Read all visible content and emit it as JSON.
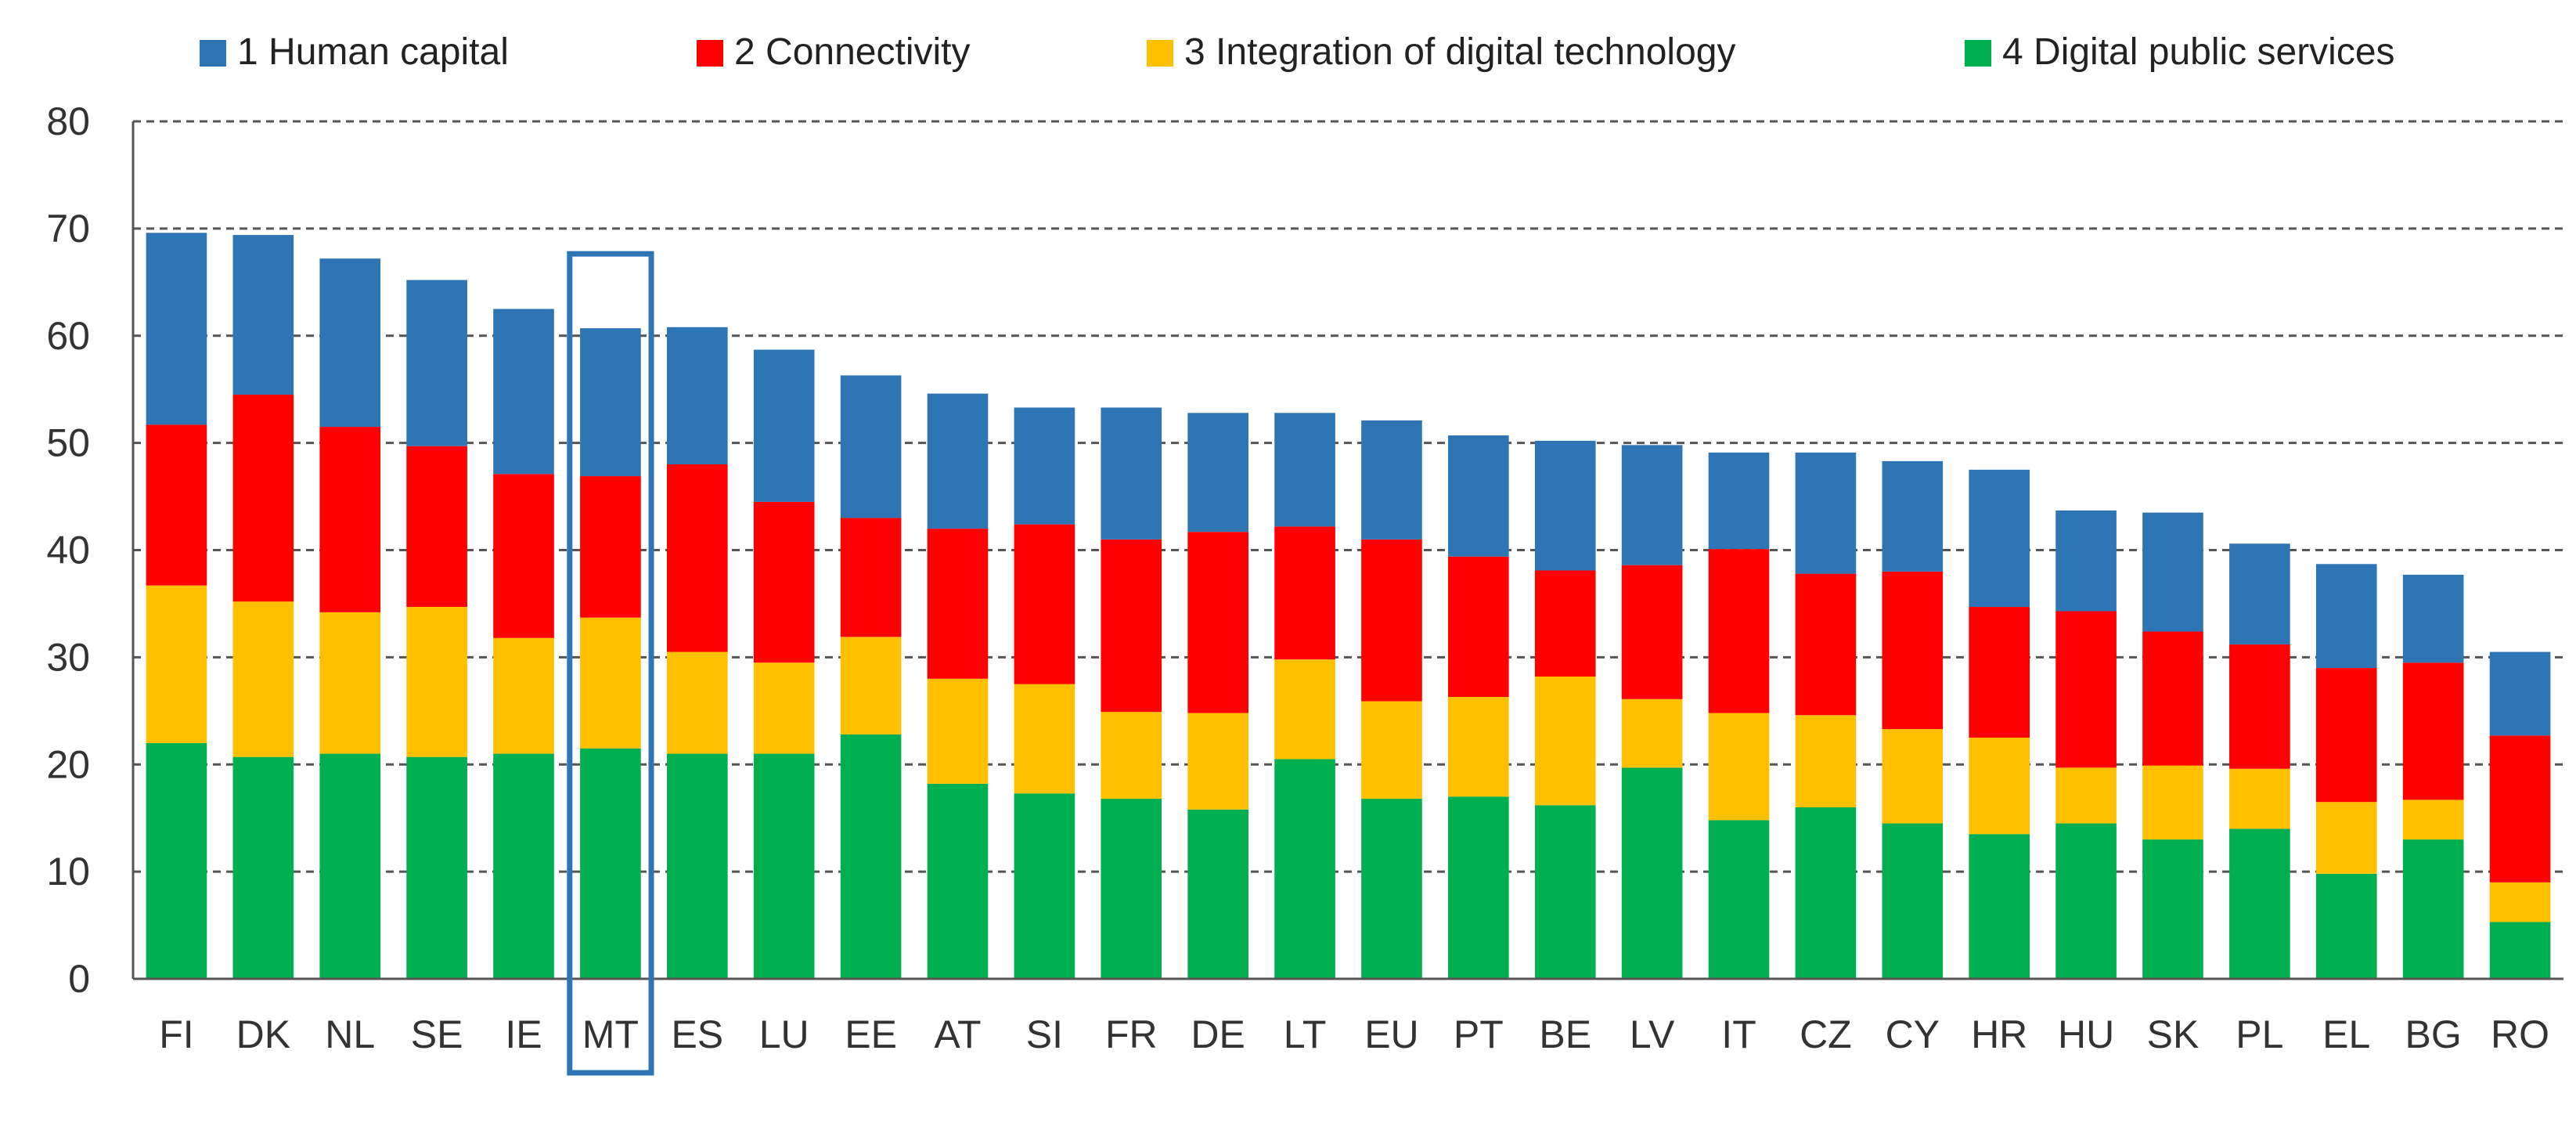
{
  "chart_data": {
    "type": "bar",
    "stacked": true,
    "title": "",
    "xlabel": "",
    "ylabel": "",
    "ylim": [
      0,
      80
    ],
    "yticks": [
      0,
      10,
      20,
      30,
      40,
      50,
      60,
      70,
      80
    ],
    "grid": true,
    "legend_position": "top",
    "highlighted_category": "MT",
    "highlight_color": "#2e75b6",
    "categories": [
      "FI",
      "DK",
      "NL",
      "SE",
      "IE",
      "MT",
      "ES",
      "LU",
      "EE",
      "AT",
      "SI",
      "FR",
      "DE",
      "LT",
      "EU",
      "PT",
      "BE",
      "LV",
      "IT",
      "CZ",
      "CY",
      "HR",
      "HU",
      "SK",
      "PL",
      "EL",
      "BG",
      "RO"
    ],
    "series": [
      {
        "name": "4 Digital public services",
        "color": "#00b050",
        "values": [
          22,
          20.7,
          21,
          20.7,
          21,
          21.5,
          21,
          21,
          22.8,
          18.2,
          17.3,
          16.8,
          15.8,
          20.5,
          16.8,
          17,
          16.2,
          19.7,
          14.8,
          16,
          14.5,
          13.5,
          14.5,
          13,
          14,
          9.8,
          13,
          5.3
        ]
      },
      {
        "name": "3 Integration of digital technology",
        "color": "#ffc000",
        "values": [
          14.7,
          14.5,
          13.2,
          14,
          10.8,
          12.2,
          9.5,
          8.5,
          9.1,
          9.8,
          10.2,
          8.1,
          9,
          9.3,
          9.1,
          9.3,
          12,
          6.4,
          10,
          8.6,
          8.8,
          9,
          5.2,
          6.9,
          5.6,
          6.7,
          3.7,
          3.7
        ]
      },
      {
        "name": "2 Connectivity",
        "color": "#ff0000",
        "values": [
          15,
          19.3,
          17.3,
          15,
          15.3,
          13.2,
          17.5,
          15,
          11.1,
          14,
          14.9,
          16.1,
          16.9,
          12.4,
          15.1,
          13.1,
          9.9,
          12.5,
          15.3,
          13.2,
          14.7,
          12.2,
          14.6,
          12.5,
          11.6,
          12.5,
          12.8,
          13.7
        ]
      },
      {
        "name": "1 Human capital",
        "color": "#2e75b6",
        "values": [
          17.9,
          14.9,
          15.7,
          15.5,
          15.4,
          13.8,
          12.8,
          14.2,
          13.3,
          12.6,
          10.9,
          12.3,
          11.1,
          10.6,
          11.1,
          11.3,
          12.1,
          11.2,
          9,
          11.3,
          10.3,
          12.8,
          9.4,
          11.1,
          9.4,
          9.7,
          8.2,
          7.8
        ]
      }
    ]
  }
}
